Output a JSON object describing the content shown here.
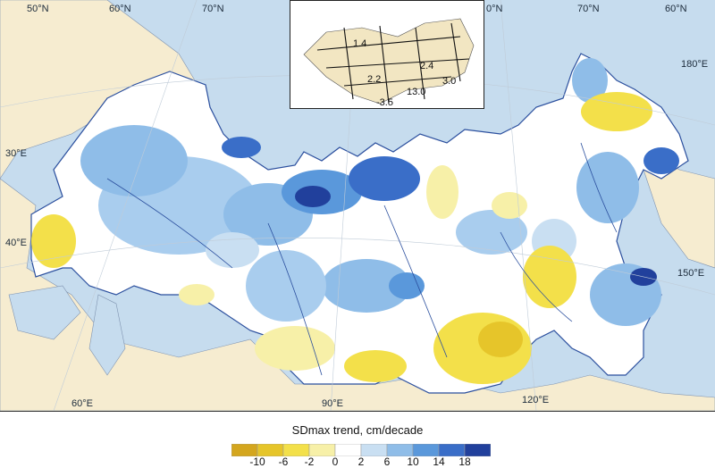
{
  "map": {
    "lat_labels": [
      "50°N",
      "60°N",
      "70°N",
      "70°N",
      "70°N",
      "60°N",
      "0°N"
    ],
    "lon_labels": [
      "30°E",
      "40°E",
      "60°E",
      "90°E",
      "120°E",
      "150°E",
      "180°E"
    ]
  },
  "inset": {
    "values": [
      "1.4",
      "2.4",
      "2.2",
      "3.0",
      "13.0",
      "-3.5"
    ]
  },
  "legend": {
    "title": "SDmax trend, cm/decade",
    "ticks": [
      "-10",
      "-6",
      "-2",
      "0",
      "2",
      "6",
      "10",
      "14",
      "18"
    ],
    "colors": [
      "#d4a61e",
      "#e6c52a",
      "#f3e04a",
      "#f7f0a8",
      "#ffffff",
      "#c9dff2",
      "#8fbde8",
      "#5a98db",
      "#3a6ec8",
      "#21409c"
    ]
  },
  "colors": {
    "ocean": "#c6dcee",
    "land_outside": "#f6ecd0",
    "russia_base": "#ffffff",
    "border": "#2b4f9e"
  }
}
